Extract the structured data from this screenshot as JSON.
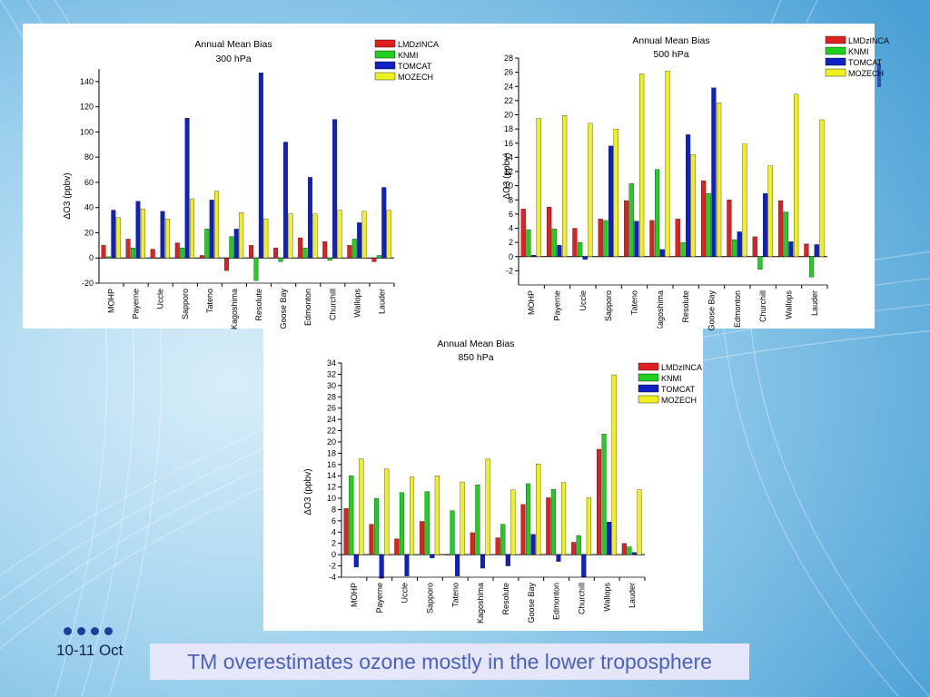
{
  "footer": {
    "date": "10-11 Oct"
  },
  "caption": "TM overestimates ozone mostly in the lower troposphere",
  "colors": {
    "LMDzINCA": "#e02020",
    "KNMI": "#20d020",
    "TOMCAT": "#1020c8",
    "MOZECH": "#f0f020"
  },
  "chart_data": [
    {
      "type": "bar",
      "title": "Annual Mean Bias",
      "subtitle": "300 hPa",
      "ylabel": "ΔO3 (ppbv)",
      "ylim": [
        -20,
        150
      ],
      "yticks": [
        -20,
        0,
        20,
        40,
        60,
        80,
        100,
        120,
        140
      ],
      "legend_position": "top-right",
      "categories": [
        "MOHP",
        "Payerne",
        "Uccle",
        "Sapporo",
        "Tateno",
        "Kagoshima",
        "Resolute",
        "Goose Bay",
        "Edmonton",
        "Churchill",
        "Wallops",
        "Lauder"
      ],
      "series": [
        {
          "name": "LMDzINCA",
          "values": [
            10,
            15,
            7,
            12,
            2,
            -10,
            10,
            8,
            16,
            13,
            10,
            -3
          ]
        },
        {
          "name": "KNMI",
          "values": [
            1,
            8,
            0,
            8,
            23,
            17,
            -18,
            -3,
            8,
            -2,
            15,
            2
          ]
        },
        {
          "name": "TOMCAT",
          "values": [
            38,
            45,
            37,
            111,
            46,
            23,
            147,
            92,
            64,
            110,
            28,
            56
          ]
        },
        {
          "name": "MOZECH",
          "values": [
            32,
            39,
            31,
            47,
            53,
            36,
            31,
            35,
            35,
            38,
            37,
            38
          ]
        }
      ]
    },
    {
      "type": "bar",
      "title": "Annual Mean Bias",
      "subtitle": "500 hPa",
      "ylabel": "ΔO3 (ppbv)",
      "ylim": [
        -4,
        28
      ],
      "yticks": [
        -2,
        0,
        2,
        4,
        6,
        8,
        10,
        12,
        14,
        16,
        18,
        20,
        22,
        24,
        26,
        28
      ],
      "legend_position": "top-right",
      "categories": [
        "MOHP",
        "Payerne",
        "Uccle",
        "Sapporo",
        "Tateno",
        "Kagoshima",
        "Resolute",
        "Goose Bay",
        "Edmonton",
        "Churchill",
        "Wallops",
        "Lauder"
      ],
      "series": [
        {
          "name": "LMDzINCA",
          "values": [
            6.7,
            7.0,
            4.0,
            5.3,
            7.9,
            5.1,
            5.3,
            10.7,
            8.0,
            2.8,
            7.9,
            1.8
          ]
        },
        {
          "name": "KNMI",
          "values": [
            3.8,
            3.9,
            2.0,
            5.1,
            10.3,
            12.3,
            2.0,
            8.9,
            2.4,
            -1.8,
            6.3,
            -2.9
          ]
        },
        {
          "name": "TOMCAT",
          "values": [
            0.2,
            1.6,
            -0.4,
            15.6,
            5.0,
            1.0,
            17.2,
            23.8,
            3.5,
            8.9,
            2.1,
            1.7
          ]
        },
        {
          "name": "MOZECH",
          "values": [
            19.5,
            19.9,
            18.8,
            18.0,
            25.8,
            26.2,
            14.4,
            21.7,
            15.9,
            12.8,
            22.9,
            19.3
          ]
        }
      ]
    },
    {
      "type": "bar",
      "title": "Annual Mean Bias",
      "subtitle": "850 hPa",
      "ylabel": "ΔO3 (ppbv)",
      "ylim": [
        -4,
        34
      ],
      "yticks": [
        -4,
        -2,
        0,
        2,
        4,
        6,
        8,
        10,
        12,
        14,
        16,
        18,
        20,
        22,
        24,
        26,
        28,
        30,
        32,
        34
      ],
      "legend_position": "top-right",
      "categories": [
        "MOHP",
        "Payerne",
        "Uccle",
        "Sapporo",
        "Tateno",
        "Kagoshima",
        "Resolute",
        "Goose Bay",
        "Edmonton",
        "Churchill",
        "Wallops",
        "Lauder"
      ],
      "series": [
        {
          "name": "LMDzINCA",
          "values": [
            8.2,
            5.4,
            2.8,
            5.9,
            0,
            3.9,
            3.0,
            8.9,
            10.1,
            2.2,
            18.7,
            2.0
          ]
        },
        {
          "name": "KNMI",
          "values": [
            14.0,
            10.0,
            11.0,
            11.2,
            7.8,
            12.4,
            5.4,
            12.6,
            11.6,
            3.4,
            21.4,
            1.4
          ]
        },
        {
          "name": "TOMCAT",
          "values": [
            -2.2,
            -4.2,
            -3.8,
            -0.6,
            -3.8,
            -2.4,
            -2.0,
            3.6,
            -1.2,
            -4.0,
            5.8,
            0.4
          ]
        },
        {
          "name": "MOZECH",
          "values": [
            17.0,
            15.2,
            13.8,
            14.0,
            12.9,
            17.0,
            11.5,
            16.1,
            12.8,
            10.1,
            31.9,
            11.5
          ]
        }
      ]
    }
  ]
}
